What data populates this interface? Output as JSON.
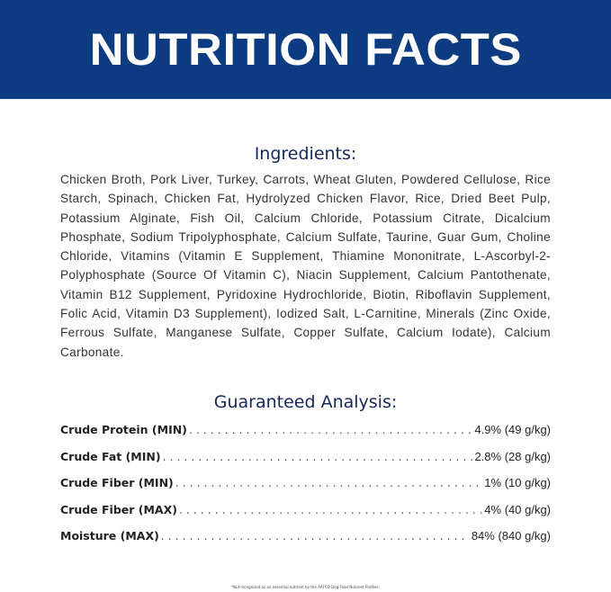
{
  "header": {
    "title": "NUTRITION FACTS",
    "background": "#0d3b82"
  },
  "ingredients": {
    "heading": "Ingredients:",
    "text": "Chicken Broth, Pork Liver, Turkey, Carrots, Wheat Gluten, Powdered Cellulose, Rice Starch, Spinach, Chicken Fat, Hydrolyzed Chicken Flavor, Rice, Dried Beet Pulp, Potassium Alginate, Fish Oil, Calcium Chloride, Potassium Citrate, Dicalcium Phosphate, Sodium Tripolyphosphate, Calcium Sulfate, Taurine, Guar Gum, Choline Chloride, Vitamins (Vitamin E Supplement, Thiamine Mononitrate, L-Ascorbyl-2-Polyphosphate (Source Of Vitamin C), Niacin Supplement, Calcium Pantothenate, Vitamin B12 Supplement, Pyridoxine Hydrochloride, Biotin, Riboflavin Supplement, Folic Acid, Vitamin D3 Supplement), Iodized Salt, L-Carnitine, Minerals (Zinc Oxide, Ferrous Sulfate, Manganese Sulfate, Copper Sulfate, Calcium Iodate), Calcium Carbonate."
  },
  "analysis": {
    "heading": "Guaranteed Analysis:",
    "rows": [
      {
        "label": "Crude Protein (MIN)",
        "value": "4.9% (49 g/kg)"
      },
      {
        "label": "Crude Fat (MIN)",
        "value": "2.8% (28 g/kg)"
      },
      {
        "label": "Crude Fiber (MIN)",
        "value": "1% (10 g/kg)"
      },
      {
        "label": "Crude Fiber (MAX)",
        "value": "4% (40 g/kg)"
      },
      {
        "label": "Moisture (MAX)",
        "value": "84% (840 g/kg)"
      }
    ]
  },
  "footnote": "*Not recognized as an essential nutrient by the AAFCO Dog Food Nutrient Profiles."
}
